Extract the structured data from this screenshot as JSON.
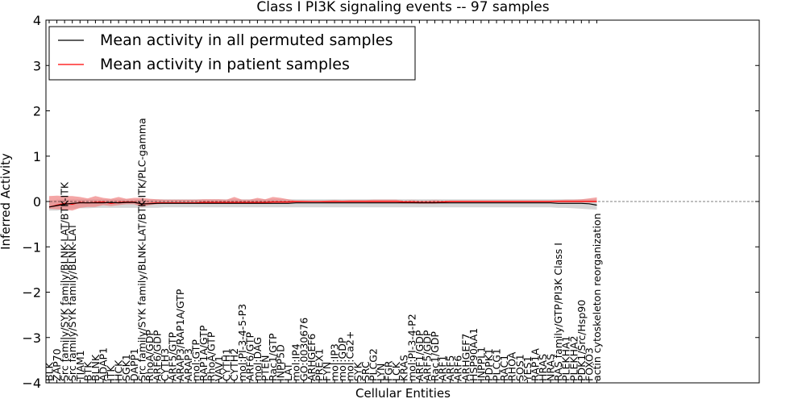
{
  "chart_data": {
    "type": "line",
    "title": "Class I PI3K signaling events -- 97 samples",
    "xlabel": "Cellular Entities",
    "ylabel": "Inferred Activity",
    "ylim": [
      -4,
      4
    ],
    "yticks": [
      -4,
      -3,
      -2,
      -1,
      0,
      1,
      2,
      3,
      4
    ],
    "ytick_labels": [
      "−4",
      "−3",
      "−2",
      "−1",
      "0",
      "1",
      "2",
      "3",
      "4"
    ],
    "legend_position": "top-left",
    "colors": {
      "permuted": "#000000",
      "patient": "#ff0000",
      "patient_band": "#f08080",
      "permuted_band": "#c8c8c8"
    },
    "categories": [
      "BLK",
      "ZAP70",
      "Src family/SYK family/BLNK-LAT/BTK-ITK",
      "Src family/SYK family/BLNK-LAT",
      "TIAM1",
      "BTK",
      "BLNK",
      "ADAP1",
      "ITK",
      "HCK",
      "SGK1",
      "DAPP1",
      "Src family/SYK family/BLNK-LAT/BTK-ITK/PLC-gamma",
      "RhoA/GDP",
      "ARF6/GDP",
      "CYTH3",
      "ARF5/GTP",
      "ARAP3/RAP1A/GTP",
      "ARAP3",
      "mol:GTP",
      "RAP1A/GTP",
      "RhoA/GTP",
      "VAV1",
      "CYTH1",
      "CYTH2",
      "mol:PI-3-4-5-P3",
      "ARF6/GTP",
      "mol:DAG",
      "PTEN",
      "Rac1/GTP",
      "INPP5D",
      "LAT",
      "mol:IP4",
      "GO:0030676",
      "ARHGEF6",
      "PREX1",
      "FYN",
      "mol:IP3",
      "mol:GDP",
      "mol:Ca2+",
      "SYK",
      "SRC",
      "PLCG2",
      "LYN",
      "FGR",
      "LCK",
      "KRAS",
      "mol:PI-3-4-P2",
      "ARF1/GDP",
      "ARF5/GDP",
      "Rac1/GDP",
      "ARF1",
      "ARF5",
      "ARF6",
      "ARHGEF7",
      "HSP90AA1",
      "INPPL1",
      "PDPK1",
      "PLCG1",
      "RAC1",
      "RHOA",
      "SOS1",
      "YES1",
      "RAP1A",
      "HRAS",
      "NRAS",
      "RAS family/GTP/PI3K Class I",
      "PLEKHA1",
      "PLEKHA2",
      "PDK1/Src/Hsp90",
      "FOXO3",
      "actin cytoskeleton reorganization"
    ],
    "series": [
      {
        "name": "Mean activity in all permuted samples",
        "values": [
          -0.12,
          -0.09,
          -0.06,
          -0.04,
          -0.03,
          -0.03,
          -0.03,
          -0.03,
          -0.02,
          -0.03,
          -0.02,
          -0.02,
          -0.05,
          -0.05,
          -0.04,
          -0.04,
          -0.04,
          -0.04,
          -0.04,
          -0.04,
          -0.04,
          -0.04,
          -0.04,
          -0.04,
          -0.04,
          -0.04,
          -0.04,
          -0.04,
          -0.04,
          -0.04,
          -0.04,
          -0.04,
          -0.03,
          -0.03,
          -0.03,
          -0.03,
          -0.03,
          -0.03,
          -0.03,
          -0.03,
          -0.03,
          -0.03,
          -0.03,
          -0.03,
          -0.03,
          -0.03,
          -0.03,
          -0.03,
          -0.03,
          -0.03,
          -0.03,
          -0.03,
          -0.03,
          -0.03,
          -0.03,
          -0.03,
          -0.03,
          -0.03,
          -0.03,
          -0.03,
          -0.03,
          -0.03,
          -0.03,
          -0.03,
          -0.03,
          -0.03,
          -0.04,
          -0.04,
          -0.04,
          -0.04,
          -0.05,
          -0.08
        ],
        "lower": [
          -0.2,
          -0.2,
          -0.18,
          -0.16,
          -0.15,
          -0.15,
          -0.14,
          -0.14,
          -0.14,
          -0.14,
          -0.14,
          -0.14,
          -0.14,
          -0.14,
          -0.14,
          -0.13,
          -0.13,
          -0.13,
          -0.13,
          -0.13,
          -0.13,
          -0.13,
          -0.13,
          -0.13,
          -0.13,
          -0.13,
          -0.13,
          -0.13,
          -0.13,
          -0.13,
          -0.13,
          -0.13,
          -0.13,
          -0.13,
          -0.13,
          -0.13,
          -0.13,
          -0.13,
          -0.13,
          -0.13,
          -0.13,
          -0.13,
          -0.13,
          -0.13,
          -0.13,
          -0.13,
          -0.13,
          -0.13,
          -0.13,
          -0.13,
          -0.13,
          -0.13,
          -0.13,
          -0.13,
          -0.13,
          -0.13,
          -0.13,
          -0.13,
          -0.13,
          -0.13,
          -0.13,
          -0.13,
          -0.13,
          -0.13,
          -0.13,
          -0.13,
          -0.14,
          -0.14,
          -0.15,
          -0.16,
          -0.17,
          -0.18
        ],
        "upper": [
          0.02,
          0.04,
          0.05,
          0.05,
          0.05,
          0.05,
          0.05,
          0.05,
          0.05,
          0.05,
          0.05,
          0.05,
          0.05,
          0.05,
          0.05,
          0.05,
          0.05,
          0.05,
          0.05,
          0.05,
          0.05,
          0.05,
          0.05,
          0.05,
          0.05,
          0.05,
          0.05,
          0.05,
          0.05,
          0.05,
          0.05,
          0.05,
          0.05,
          0.05,
          0.05,
          0.05,
          0.05,
          0.05,
          0.05,
          0.05,
          0.05,
          0.05,
          0.05,
          0.05,
          0.05,
          0.05,
          0.05,
          0.05,
          0.05,
          0.05,
          0.05,
          0.05,
          0.05,
          0.05,
          0.05,
          0.05,
          0.05,
          0.05,
          0.05,
          0.05,
          0.05,
          0.05,
          0.05,
          0.05,
          0.05,
          0.05,
          0.05,
          0.05,
          0.05,
          0.05,
          0.05,
          0.05
        ]
      },
      {
        "name": "Mean activity in patient samples",
        "values": [
          -0.12,
          -0.08,
          -0.04,
          -0.06,
          -0.02,
          -0.03,
          -0.02,
          -0.01,
          -0.04,
          -0.02,
          -0.01,
          -0.01,
          -0.06,
          -0.04,
          -0.03,
          -0.03,
          -0.03,
          -0.03,
          -0.03,
          -0.03,
          -0.02,
          -0.02,
          -0.02,
          -0.02,
          -0.02,
          -0.02,
          -0.02,
          -0.02,
          -0.02,
          -0.01,
          -0.01,
          -0.01,
          0.0,
          0.0,
          0.0,
          0.0,
          0.0,
          0.0,
          0.0,
          0.0,
          0.0,
          0.0,
          0.0,
          0.0,
          0.0,
          0.0,
          -0.01,
          -0.01,
          -0.02,
          -0.02,
          -0.02,
          -0.01,
          0.0,
          0.0,
          0.0,
          0.0,
          0.0,
          0.0,
          0.0,
          0.0,
          0.0,
          0.0,
          0.0,
          0.0,
          0.0,
          0.0,
          0.0,
          0.0,
          0.0,
          0.0,
          0.0,
          0.0
        ],
        "lower": [
          -0.16,
          -0.17,
          -0.18,
          -0.2,
          -0.14,
          -0.12,
          -0.12,
          -0.08,
          -0.1,
          -0.08,
          -0.06,
          -0.06,
          -0.12,
          -0.08,
          -0.06,
          -0.05,
          -0.05,
          -0.05,
          -0.05,
          -0.05,
          -0.05,
          -0.05,
          -0.05,
          -0.05,
          -0.05,
          -0.05,
          -0.05,
          -0.05,
          -0.05,
          -0.03,
          -0.03,
          -0.03,
          -0.02,
          -0.01,
          -0.01,
          -0.01,
          -0.02,
          -0.02,
          -0.02,
          -0.02,
          -0.02,
          -0.02,
          -0.03,
          -0.03,
          -0.03,
          -0.03,
          -0.04,
          -0.04,
          -0.05,
          -0.05,
          -0.05,
          -0.03,
          -0.02,
          -0.02,
          -0.02,
          -0.02,
          -0.02,
          -0.02,
          -0.02,
          -0.02,
          -0.02,
          -0.02,
          -0.02,
          -0.02,
          -0.02,
          -0.02,
          -0.02,
          -0.02,
          -0.02,
          -0.02,
          -0.02,
          -0.02
        ],
        "upper": [
          0.12,
          0.13,
          0.12,
          0.12,
          0.1,
          0.07,
          0.12,
          0.08,
          0.06,
          0.1,
          0.06,
          0.08,
          0.08,
          0.06,
          0.05,
          0.04,
          0.04,
          0.04,
          0.04,
          0.04,
          0.05,
          0.05,
          0.05,
          0.04,
          0.1,
          0.04,
          0.04,
          0.08,
          0.05,
          0.1,
          0.08,
          0.05,
          0.02,
          0.02,
          0.01,
          0.01,
          0.02,
          0.03,
          0.02,
          0.03,
          0.03,
          0.03,
          0.04,
          0.04,
          0.04,
          0.04,
          0.02,
          0.03,
          0.02,
          0.02,
          0.03,
          0.02,
          0.02,
          0.02,
          0.02,
          0.02,
          0.02,
          0.02,
          0.02,
          0.02,
          0.02,
          0.02,
          0.02,
          0.02,
          0.02,
          0.02,
          0.03,
          0.04,
          0.04,
          0.05,
          0.07,
          0.09
        ]
      }
    ]
  }
}
